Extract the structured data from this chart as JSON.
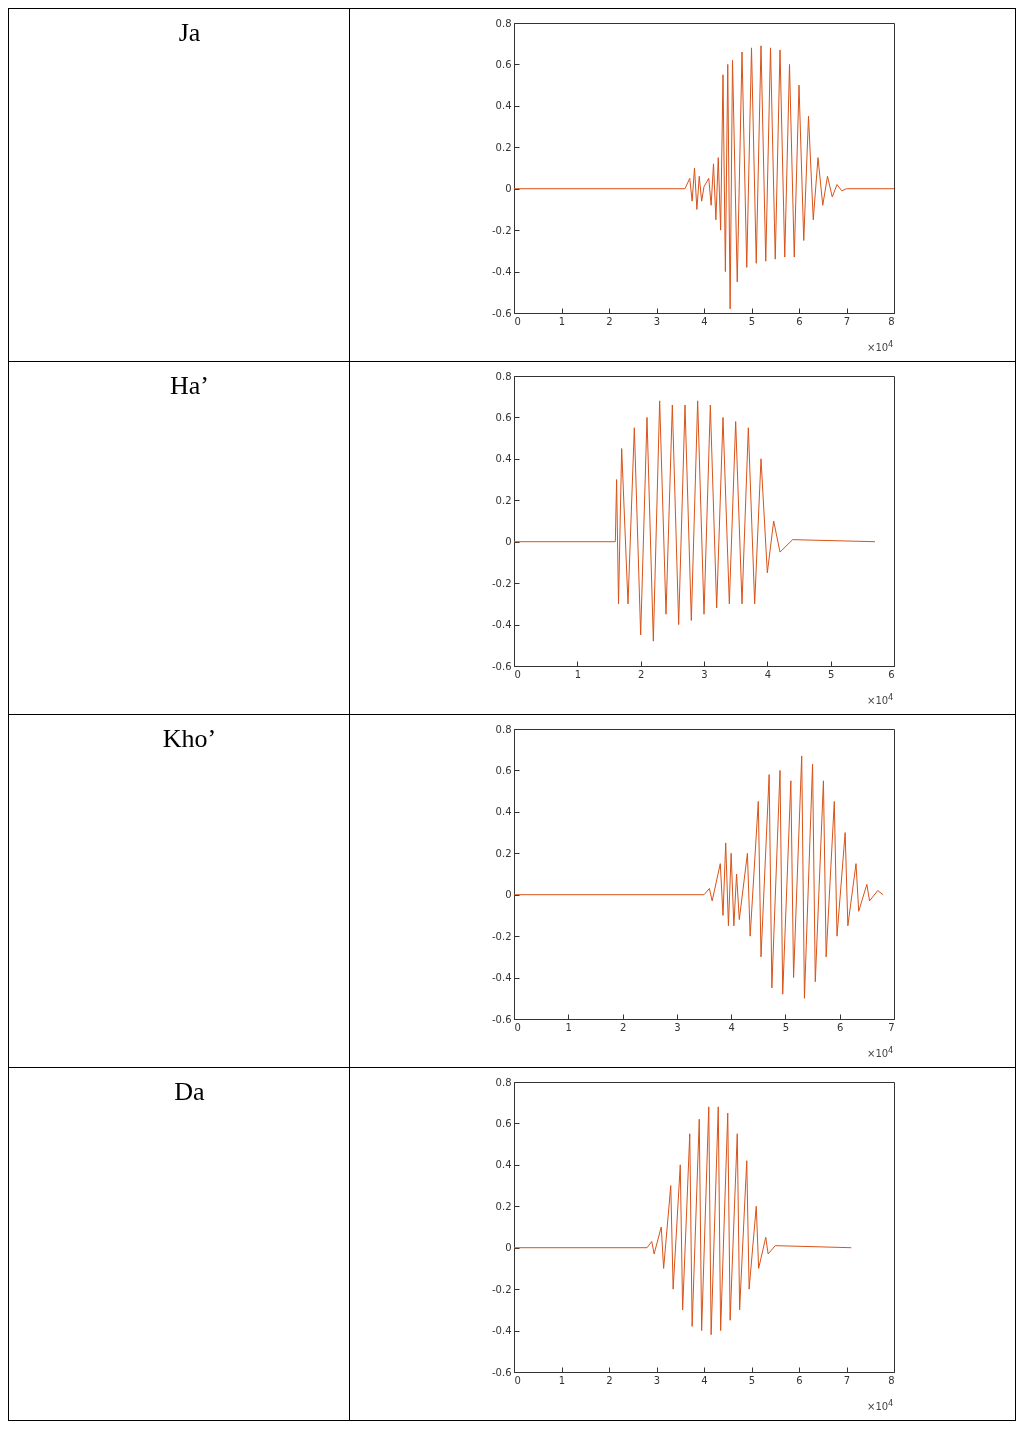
{
  "chart_data": [
    {
      "type": "line",
      "ylabel": "Ja",
      "color": "#d95319",
      "xlim": [
        0,
        8
      ],
      "xticks": [
        0,
        1,
        2,
        3,
        4,
        5,
        6,
        7,
        8
      ],
      "ylim": [
        -0.6,
        0.8
      ],
      "yticks": [
        -0.6,
        -0.4,
        -0.2,
        0,
        0.2,
        0.4,
        0.6,
        0.8
      ],
      "annotations": [
        "×10$^{4}$"
      ],
      "x": [
        0,
        3.6,
        3.7,
        3.75,
        3.8,
        3.85,
        3.9,
        3.95,
        4.0,
        4.1,
        4.15,
        4.2,
        4.25,
        4.3,
        4.35,
        4.4,
        4.45,
        4.5,
        4.55,
        4.6,
        4.7,
        4.8,
        4.9,
        5.0,
        5.1,
        5.2,
        5.3,
        5.4,
        5.5,
        5.6,
        5.7,
        5.8,
        5.9,
        6.0,
        6.1,
        6.2,
        6.3,
        6.4,
        6.5,
        6.6,
        6.7,
        6.8,
        6.9,
        7.0,
        8.0
      ],
      "values": [
        0,
        0,
        0.05,
        -0.06,
        0.1,
        -0.1,
        0.06,
        -0.06,
        0.01,
        0.05,
        -0.08,
        0.12,
        -0.15,
        0.15,
        -0.2,
        0.55,
        -0.4,
        0.6,
        -0.58,
        0.62,
        -0.45,
        0.66,
        -0.38,
        0.68,
        -0.36,
        0.69,
        -0.35,
        0.68,
        -0.34,
        0.67,
        -0.33,
        0.6,
        -0.33,
        0.5,
        -0.25,
        0.35,
        -0.15,
        0.15,
        -0.08,
        0.06,
        -0.04,
        0.02,
        -0.01,
        0,
        0
      ]
    },
    {
      "type": "line",
      "ylabel": "Ha’",
      "color": "#d95319",
      "xlim": [
        0,
        6
      ],
      "xticks": [
        0,
        1,
        2,
        3,
        4,
        5,
        6
      ],
      "ylim": [
        -0.6,
        0.8
      ],
      "yticks": [
        -0.6,
        -0.4,
        -0.2,
        0,
        0.2,
        0.4,
        0.6,
        0.8
      ],
      "annotations": [
        "×10$^{4}$"
      ],
      "x": [
        0,
        1.6,
        1.62,
        1.65,
        1.7,
        1.8,
        1.9,
        2.0,
        2.1,
        2.2,
        2.3,
        2.4,
        2.5,
        2.6,
        2.7,
        2.8,
        2.9,
        3.0,
        3.1,
        3.2,
        3.3,
        3.4,
        3.5,
        3.6,
        3.7,
        3.8,
        3.9,
        4.0,
        4.1,
        4.2,
        4.4,
        5.7
      ],
      "values": [
        0,
        0,
        0.3,
        -0.3,
        0.45,
        -0.3,
        0.55,
        -0.45,
        0.6,
        -0.48,
        0.68,
        -0.35,
        0.66,
        -0.4,
        0.66,
        -0.38,
        0.68,
        -0.35,
        0.66,
        -0.32,
        0.6,
        -0.3,
        0.58,
        -0.3,
        0.55,
        -0.3,
        0.4,
        -0.15,
        0.1,
        -0.05,
        0.01,
        0
      ]
    },
    {
      "type": "line",
      "ylabel": "Kho’",
      "color": "#d95319",
      "xlim": [
        0,
        7
      ],
      "xticks": [
        0,
        1,
        2,
        3,
        4,
        5,
        6,
        7
      ],
      "ylim": [
        -0.6,
        0.8
      ],
      "yticks": [
        -0.6,
        -0.4,
        -0.2,
        0,
        0.2,
        0.4,
        0.6,
        0.8
      ],
      "annotations": [
        "×10$^{4}$"
      ],
      "x": [
        0,
        3.5,
        3.6,
        3.65,
        3.8,
        3.85,
        3.9,
        3.95,
        4.0,
        4.05,
        4.1,
        4.15,
        4.3,
        4.35,
        4.5,
        4.55,
        4.7,
        4.75,
        4.9,
        4.95,
        5.1,
        5.15,
        5.3,
        5.35,
        5.5,
        5.55,
        5.7,
        5.75,
        5.9,
        5.95,
        6.1,
        6.15,
        6.3,
        6.35,
        6.5,
        6.55,
        6.7,
        6.8
      ],
      "values": [
        0,
        0,
        0.03,
        -0.03,
        0.15,
        -0.1,
        0.25,
        -0.15,
        0.2,
        -0.15,
        0.1,
        -0.12,
        0.2,
        -0.2,
        0.45,
        -0.3,
        0.58,
        -0.45,
        0.6,
        -0.48,
        0.55,
        -0.4,
        0.67,
        -0.5,
        0.63,
        -0.42,
        0.55,
        -0.3,
        0.45,
        -0.2,
        0.3,
        -0.15,
        0.15,
        -0.08,
        0.05,
        -0.03,
        0.02,
        0
      ]
    },
    {
      "type": "line",
      "ylabel": "Da",
      "color": "#d95319",
      "xlim": [
        0,
        8
      ],
      "xticks": [
        0,
        1,
        2,
        3,
        4,
        5,
        6,
        7,
        8
      ],
      "ylim": [
        -0.6,
        0.8
      ],
      "yticks": [
        -0.6,
        -0.4,
        -0.2,
        0,
        0.2,
        0.4,
        0.6,
        0.8
      ],
      "annotations": [
        "×10$^{4}$"
      ],
      "x": [
        0,
        2.8,
        2.9,
        2.95,
        3.1,
        3.15,
        3.3,
        3.35,
        3.5,
        3.55,
        3.7,
        3.75,
        3.9,
        3.95,
        4.1,
        4.15,
        4.3,
        4.35,
        4.5,
        4.55,
        4.7,
        4.75,
        4.9,
        4.95,
        5.1,
        5.15,
        5.3,
        5.35,
        5.5,
        7.1
      ],
      "values": [
        0,
        0,
        0.03,
        -0.03,
        0.1,
        -0.1,
        0.3,
        -0.2,
        0.4,
        -0.3,
        0.55,
        -0.38,
        0.62,
        -0.4,
        0.68,
        -0.42,
        0.68,
        -0.4,
        0.65,
        -0.35,
        0.55,
        -0.3,
        0.42,
        -0.2,
        0.2,
        -0.1,
        0.05,
        -0.03,
        0.01,
        0
      ]
    }
  ]
}
